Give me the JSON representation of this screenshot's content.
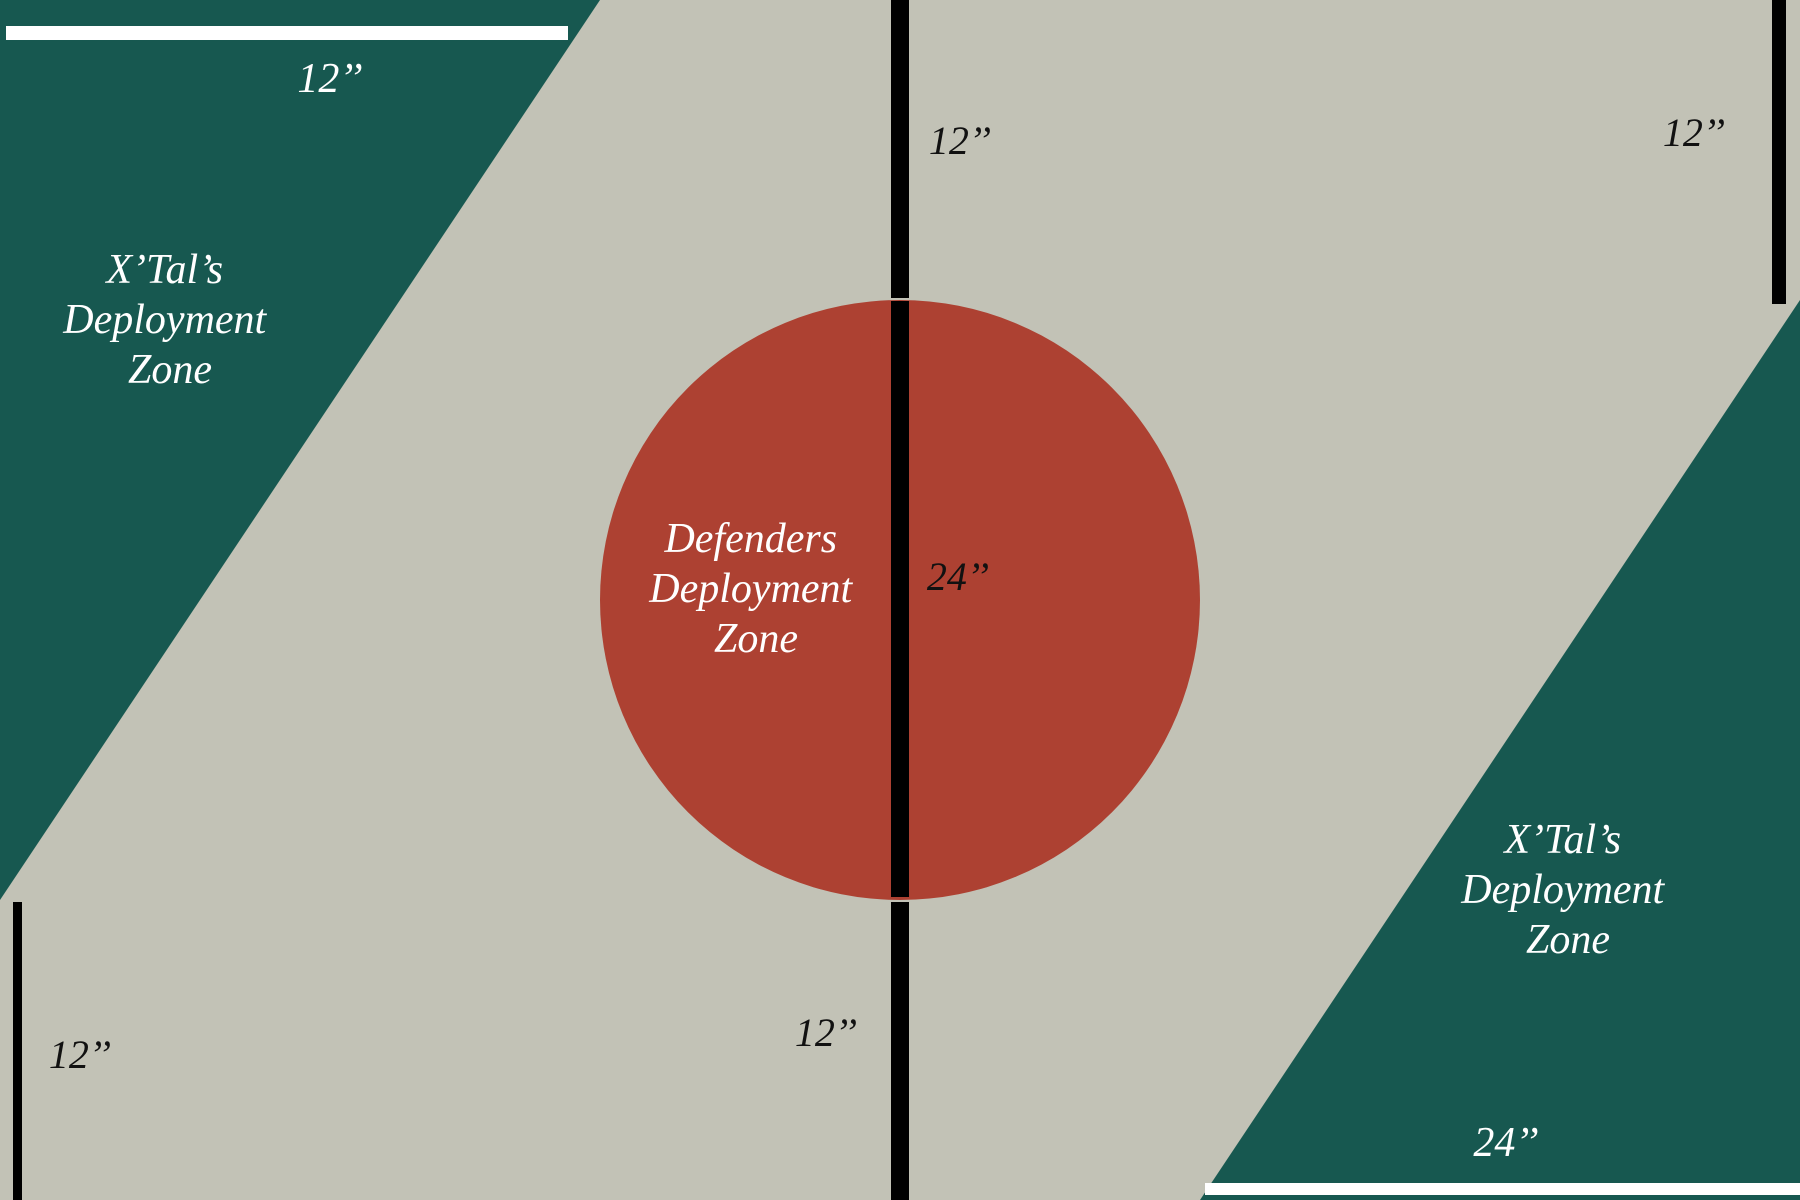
{
  "colors": {
    "table": "#c2c2b6",
    "attacker_zone": "#175850",
    "defender_zone": "#ad4132",
    "marker_dark": "#000000",
    "marker_light": "#ffffff"
  },
  "zones": {
    "attacker_top_left": {
      "line1": "X’Tal’s",
      "line2": "Deployment",
      "line3": "Zone"
    },
    "attacker_bottom_right": {
      "line1": "X’Tal’s",
      "line2": "Deployment",
      "line3": "Zone"
    },
    "defender_center": {
      "line1": "Defenders",
      "line2": "Deployment",
      "line3": "Zone"
    }
  },
  "measurements": {
    "top_left_edge": "12’’",
    "center_top": "12’’",
    "top_right": "12’’",
    "circle_diameter": "24’’",
    "bottom_left": "12’’",
    "center_bottom": "12’’",
    "bottom_right_edge": "24’’"
  }
}
